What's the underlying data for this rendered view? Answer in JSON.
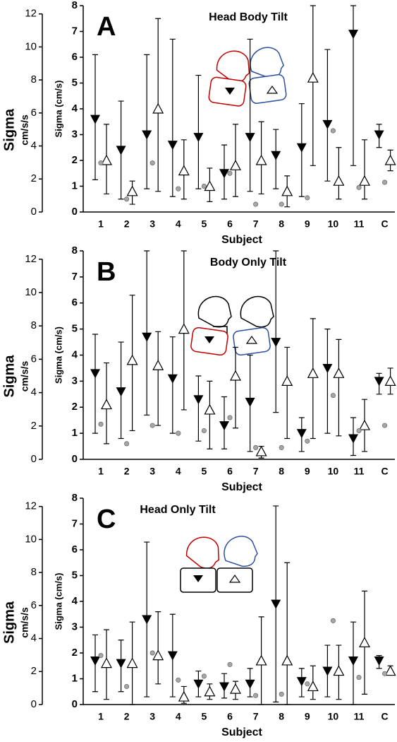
{
  "chart_data": [
    {
      "type": "errorbar",
      "panel": "A",
      "title": "Head Body Tilt",
      "xlabel": "Subject",
      "ylabel": "Sigma (cm/s)",
      "y2label": "Sigma",
      "y2unit": "cm/s/s",
      "categories": [
        "1",
        "2",
        "3",
        "4",
        "5",
        "6",
        "7",
        "8",
        "9",
        "10",
        "11",
        "C"
      ],
      "ylim": [
        0,
        8
      ],
      "yticks": [
        0,
        1,
        2,
        3,
        4,
        5,
        6,
        7,
        8
      ],
      "y2lim": [
        0,
        12.5
      ],
      "y2ticks": [
        0,
        2,
        4,
        6,
        8,
        10,
        12
      ],
      "series": [
        {
          "marker": "triangle-down",
          "color": "#000000",
          "values": [
            3.6,
            2.4,
            3.0,
            2.6,
            2.9,
            1.5,
            2.9,
            2.2,
            2.5,
            3.4,
            6.9,
            3.0
          ],
          "lower": [
            1.25,
            0.5,
            0.9,
            0.6,
            0.9,
            0.5,
            0.8,
            0.9,
            0.6,
            1.2,
            1.8,
            2.5
          ],
          "upper": [
            6.1,
            4.3,
            6.1,
            6.7,
            5.3,
            2.6,
            6.7,
            3.2,
            4.2,
            6.3,
            8,
            3.4
          ]
        },
        {
          "marker": "triangle-up-open",
          "color": "#000000",
          "values": [
            2.0,
            0.8,
            4.0,
            1.6,
            1.0,
            1.8,
            2.0,
            0.8,
            5.2,
            1.2,
            1.2,
            2.0
          ],
          "lower": [
            0.7,
            0.3,
            0.8,
            0.5,
            0.4,
            0.6,
            0.7,
            0.2,
            1.8,
            0.5,
            0.5,
            1.6
          ],
          "upper": [
            3.4,
            1.2,
            7.5,
            2.8,
            1.7,
            3.4,
            3.5,
            1.4,
            8,
            2.5,
            2.8,
            2.4
          ]
        },
        {
          "marker": "dot",
          "color": "#a6a6a6",
          "values": [
            1.9,
            0.5,
            1.9,
            0.9,
            1.0,
            1.5,
            0.3,
            0.3,
            0.55,
            3.15,
            0.95,
            1.15
          ]
        }
      ]
    },
    {
      "type": "errorbar",
      "panel": "B",
      "title": "Body Only Tilt",
      "xlabel": "Subject",
      "ylabel": "Sigma (cm/s)",
      "y2label": "Sigma",
      "y2unit": "cm/s/s",
      "categories": [
        "1",
        "2",
        "3",
        "4",
        "5",
        "6",
        "7",
        "8",
        "9",
        "10",
        "11",
        "C"
      ],
      "ylim": [
        0,
        8
      ],
      "yticks": [
        0,
        1,
        2,
        3,
        4,
        5,
        6,
        7,
        8
      ],
      "y2lim": [
        0,
        12.5
      ],
      "y2ticks": [
        0,
        2,
        4,
        6,
        8,
        10,
        12
      ],
      "series": [
        {
          "marker": "triangle-down",
          "color": "#000000",
          "values": [
            3.3,
            2.6,
            4.7,
            3.1,
            2.3,
            1.3,
            2.2,
            4.5,
            1.0,
            3.5,
            0.8,
            3.0
          ],
          "lower": [
            1.0,
            0.8,
            1.7,
            1.0,
            0.7,
            0.4,
            0.3,
            1.8,
            0.3,
            1.0,
            0.15,
            2.5
          ],
          "upper": [
            4.8,
            4.5,
            8,
            4.7,
            3.2,
            2.4,
            4.0,
            8,
            1.6,
            5.0,
            1.6,
            3.3
          ]
        },
        {
          "marker": "triangle-up-open",
          "color": "#000000",
          "values": [
            2.1,
            3.8,
            3.6,
            5.0,
            1.9,
            3.2,
            0.3,
            3.0,
            3.3,
            3.3,
            1.3,
            3.0
          ],
          "lower": [
            0.6,
            1.1,
            1.3,
            1.9,
            0.4,
            1.2,
            0.05,
            0.8,
            0.8,
            0.9,
            0.3,
            2.5
          ],
          "upper": [
            3.7,
            6.3,
            4.9,
            8,
            3.0,
            4.3,
            0.5,
            4.3,
            5.4,
            4.6,
            2.3,
            3.5
          ]
        },
        {
          "marker": "dot",
          "color": "#a6a6a6",
          "values": [
            1.35,
            0.6,
            1.3,
            1.0,
            1.1,
            1.6,
            0.45,
            0.45,
            0.7,
            2.45,
            1.1,
            1.3
          ]
        }
      ]
    },
    {
      "type": "errorbar",
      "panel": "C",
      "title": "Head Only Tilt",
      "xlabel": "Subject",
      "ylabel": "Sigma (cm/s)",
      "y2label": "Sigma",
      "y2unit": "cm/s/s",
      "categories": [
        "1",
        "2",
        "3",
        "4",
        "5",
        "6",
        "7",
        "8",
        "9",
        "10",
        "11",
        "C"
      ],
      "ylim": [
        0,
        8
      ],
      "yticks": [
        0,
        1,
        2,
        3,
        4,
        5,
        6,
        7,
        8
      ],
      "y2lim": [
        0,
        12.5
      ],
      "y2ticks": [
        0,
        2,
        4,
        6,
        8,
        10,
        12
      ],
      "series": [
        {
          "marker": "triangle-down",
          "color": "#000000",
          "values": [
            1.7,
            1.6,
            3.3,
            1.9,
            0.8,
            0.7,
            0.8,
            3.9,
            0.9,
            1.3,
            1.7,
            1.7
          ],
          "lower": [
            0.5,
            0.5,
            0.3,
            0.3,
            0.3,
            0.25,
            0.3,
            0.1,
            0.3,
            0.3,
            0,
            1.4
          ],
          "upper": [
            2.7,
            2.5,
            6.3,
            3.5,
            1.3,
            1.2,
            1.4,
            7.7,
            1.4,
            2.3,
            3.2,
            1.9
          ]
        },
        {
          "marker": "triangle-up-open",
          "color": "#000000",
          "values": [
            1.6,
            1.6,
            1.9,
            0.3,
            0.5,
            0.6,
            1.7,
            1.7,
            0.7,
            1.3,
            2.4,
            1.3
          ],
          "lower": [
            0.2,
            0,
            0.8,
            0.05,
            0.2,
            0.2,
            0,
            0,
            0.2,
            0.2,
            0.4,
            1.2
          ],
          "upper": [
            2.9,
            3.2,
            3.6,
            0.7,
            0.8,
            0.9,
            3.4,
            5.5,
            1.5,
            2.3,
            4.4,
            1.5
          ]
        },
        {
          "marker": "dot",
          "color": "#a6a6a6",
          "values": [
            1.9,
            0.7,
            2.0,
            0.95,
            1.1,
            1.55,
            0.35,
            0.4,
            0.8,
            3.25,
            1.05,
            1.2
          ]
        }
      ]
    }
  ]
}
